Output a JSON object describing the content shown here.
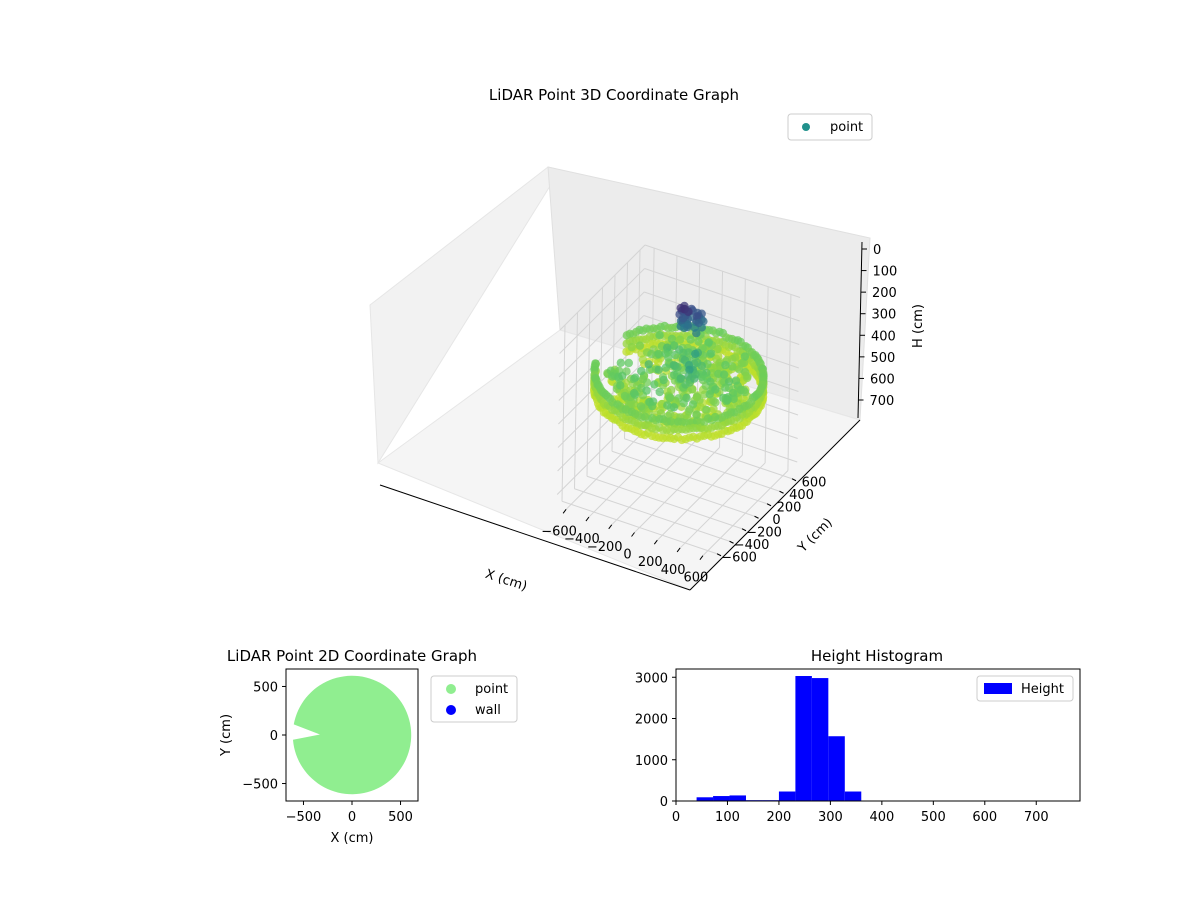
{
  "chart_data": [
    {
      "type": "scatter3d",
      "title": "LiDAR Point 3D Coordinate Graph",
      "xlabel": "X (cm)",
      "ylabel": "Y (cm)",
      "zlabel": "H (cm)",
      "x_ticks": [
        "−600",
        "−400",
        "−200",
        "0",
        "200",
        "400",
        "600"
      ],
      "y_ticks": [
        "−600",
        "−400",
        "−200",
        "0",
        "200",
        "400",
        "600"
      ],
      "z_ticks": [
        "0",
        "100",
        "200",
        "300",
        "400",
        "500",
        "600",
        "700"
      ],
      "xlim": [
        -680,
        680
      ],
      "ylim": [
        -680,
        680
      ],
      "zlim": [
        0,
        750
      ],
      "z_inverted": true,
      "legend": {
        "label": "point",
        "position": "upper right",
        "color": "#21918c"
      },
      "colormap": "viridis",
      "description_series": {
        "name": "point",
        "outer_ring_radius_cm": 650,
        "ring_height_cm": [
          250,
          330
        ],
        "dense_center_height_cm": [
          250,
          330
        ],
        "tall_objects_height_cm": [
          40,
          140
        ]
      }
    },
    {
      "type": "scatter",
      "title": "LiDAR Point 2D Coordinate Graph",
      "xlabel": "X (cm)",
      "ylabel": "Y (cm)",
      "x_ticks": [
        "−500",
        "0",
        "500"
      ],
      "y_ticks": [
        "500",
        "0",
        "−500"
      ],
      "xlim": [
        -680,
        680
      ],
      "ylim": [
        -680,
        680
      ],
      "legend": {
        "position": "outside right",
        "entries": [
          {
            "label": "point",
            "color": "#90ee90"
          },
          {
            "label": "wall",
            "color": "#0000ff"
          }
        ]
      },
      "series": [
        {
          "name": "point",
          "shape": "disc",
          "radius_cm": 610,
          "gap_toward": "negative x"
        }
      ]
    },
    {
      "type": "bar",
      "title": "Height Histogram",
      "x_ticks": [
        "0",
        "100",
        "200",
        "300",
        "400",
        "500",
        "600",
        "700"
      ],
      "y_ticks": [
        "0",
        "1000",
        "2000",
        "3000"
      ],
      "xlim": [
        0,
        785
      ],
      "ylim": [
        0,
        3200
      ],
      "legend": {
        "label": "Height",
        "position": "upper right",
        "color": "#0000ff"
      },
      "bin_width": 32,
      "bins": [
        {
          "x0": 40,
          "x1": 72,
          "count": 90
        },
        {
          "x0": 72,
          "x1": 104,
          "count": 120
        },
        {
          "x0": 104,
          "x1": 136,
          "count": 135
        },
        {
          "x0": 136,
          "x1": 168,
          "count": 20
        },
        {
          "x0": 168,
          "x1": 200,
          "count": 20
        },
        {
          "x0": 200,
          "x1": 232,
          "count": 230
        },
        {
          "x0": 232,
          "x1": 264,
          "count": 3030
        },
        {
          "x0": 264,
          "x1": 296,
          "count": 2980
        },
        {
          "x0": 296,
          "x1": 328,
          "count": 1570
        },
        {
          "x0": 328,
          "x1": 360,
          "count": 230
        }
      ]
    }
  ]
}
